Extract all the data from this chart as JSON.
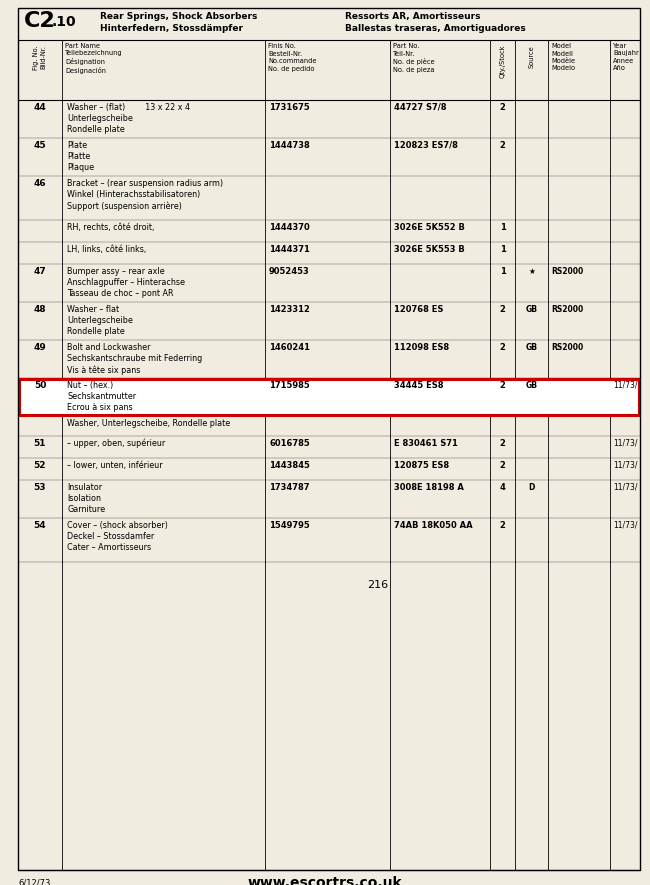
{
  "title_code": "C2",
  "title_sub": ".10",
  "title_en1": "Rear Springs, Shock Absorbers",
  "title_en2": "Hinterfedern, Stossdämpfer",
  "title_fr1": "Ressorts AR, Amortisseurs",
  "title_fr2": "Ballestas traseras, Amortiguadores",
  "rows": [
    {
      "fig": "44",
      "name": "Washer – (flat)        13 x 22 x 4\nUnterlegscheibe\nRondelle plate",
      "finis": "1731675",
      "part": "44727 S7/8",
      "qty": "2",
      "source": "",
      "model": "",
      "year": "",
      "highlight": false,
      "indent": false
    },
    {
      "fig": "45",
      "name": "Plate\nPlatte\nPlaque",
      "finis": "1444738",
      "part": "120823 ES7/8",
      "qty": "2",
      "source": "",
      "model": "",
      "year": "",
      "highlight": false,
      "indent": false
    },
    {
      "fig": "46",
      "name": "Bracket – (rear suspension radius arm)\nWinkel (Hinterachsstabilisatoren)\nSupport (suspension arrière)",
      "finis": "",
      "part": "",
      "qty": "",
      "source": "",
      "model": "",
      "year": "",
      "highlight": false,
      "indent": false
    },
    {
      "fig": "",
      "name": "RH, rechts, côté droit,",
      "finis": "1444370",
      "part": "3026E 5K552 B",
      "qty": "1",
      "source": "",
      "model": "",
      "year": "",
      "highlight": false,
      "indent": true
    },
    {
      "fig": "",
      "name": "LH, links, côté links,",
      "finis": "1444371",
      "part": "3026E 5K553 B",
      "qty": "1",
      "source": "",
      "model": "",
      "year": "",
      "highlight": false,
      "indent": true
    },
    {
      "fig": "47",
      "name": "Bumper assy – rear axle\nAnschlagpuffer – Hinterachse\nTasseau de choc – pont AR",
      "finis": "9052453",
      "part": "",
      "qty": "1",
      "source": "★",
      "model": "RS2000",
      "year": "",
      "highlight": false,
      "indent": false
    },
    {
      "fig": "48",
      "name": "Washer – flat\nUnterlegscheibe\nRondelle plate",
      "finis": "1423312",
      "part": "120768 ES",
      "qty": "2",
      "source": "GB",
      "model": "RS2000",
      "year": "",
      "highlight": false,
      "indent": false
    },
    {
      "fig": "49",
      "name": "Bolt and Lockwasher\nSechskantschraube mit Federring\nVis à tête six pans",
      "finis": "1460241",
      "part": "112098 ES8",
      "qty": "2",
      "source": "GB",
      "model": "RS2000",
      "year": "",
      "highlight": false,
      "indent": false
    },
    {
      "fig": "50",
      "name": "Nut – (hex.)\nSechskantmutter\nEcrou à six pans",
      "finis": "1715985",
      "part": "34445 ES8",
      "qty": "2",
      "source": "GB",
      "model": "",
      "year": "11/73/",
      "highlight": true,
      "indent": false
    },
    {
      "fig": "",
      "name": "Washer, Unterlegscheibe, Rondelle plate",
      "finis": "",
      "part": "",
      "qty": "",
      "source": "",
      "model": "",
      "year": "",
      "highlight": false,
      "indent": false
    },
    {
      "fig": "51",
      "name": "– upper, oben, supérieur",
      "finis": "6016785",
      "part": "E 830461 S71",
      "qty": "2",
      "source": "",
      "model": "",
      "year": "11/73/",
      "highlight": false,
      "indent": true
    },
    {
      "fig": "52",
      "name": "– lower, unten, inférieur",
      "finis": "1443845",
      "part": "120875 ES8",
      "qty": "2",
      "source": "",
      "model": "",
      "year": "11/73/",
      "highlight": false,
      "indent": true
    },
    {
      "fig": "53",
      "name": "Insulator\nIsolation\nGarniture",
      "finis": "1734787",
      "part": "3008E 18198 A",
      "qty": "4",
      "source": "D",
      "model": "",
      "year": "11/73/",
      "highlight": false,
      "indent": false
    },
    {
      "fig": "54",
      "name": "Cover – (shock absorber)\nDeckel – Stossdamfer\nCater – Amortisseurs",
      "finis": "1549795",
      "part": "74AB 18K050 AA",
      "qty": "2",
      "source": "",
      "model": "",
      "year": "11/73/",
      "highlight": false,
      "indent": false
    }
  ],
  "page_number": "216",
  "date_code": "6/12/73",
  "website": "www.escortrs.co.uk",
  "bg_color": "#f0ede0",
  "highlight_border": "#cc0000",
  "row_heights_pt": [
    38,
    38,
    44,
    22,
    22,
    38,
    38,
    38,
    38,
    20,
    22,
    22,
    38,
    44
  ]
}
